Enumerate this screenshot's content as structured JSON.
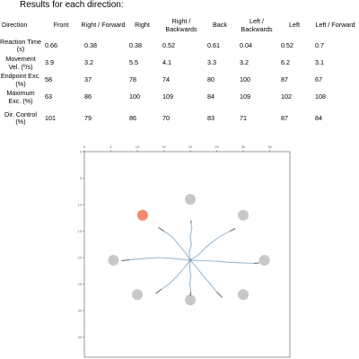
{
  "heading": "Results for each direction:",
  "table": {
    "corner": "Direction",
    "columns": [
      "Front",
      "Right / Forward",
      "Right",
      "Right / Backwards",
      "Back",
      "Left / Backwards",
      "Left",
      "Left / Forward"
    ],
    "rows": [
      {
        "label": "Reaction Time (s)",
        "values": [
          "0.66",
          "0.38",
          "0.38",
          "0.52",
          "0.61",
          "0.04",
          "0.52",
          "0.7"
        ]
      },
      {
        "label": "Movement Vel. (º/s)",
        "values": [
          "3.9",
          "3.2",
          "5.5",
          "4.1",
          "3.3",
          "3.2",
          "6.2",
          "3.1"
        ]
      },
      {
        "label": "Endpoint Exc. (%)",
        "values": [
          "58",
          "37",
          "78",
          "74",
          "80",
          "100",
          "87",
          "67"
        ]
      },
      {
        "label": "Maximum Exc. (%)",
        "values": [
          "63",
          "86",
          "100",
          "109",
          "84",
          "109",
          "102",
          "108"
        ]
      },
      {
        "label": "Dir. Control (%)",
        "values": [
          "101",
          "79",
          "86",
          "70",
          "83",
          "71",
          "87",
          "84"
        ]
      }
    ]
  },
  "plot": {
    "x_ticks": [
      "0",
      "5",
      "10",
      "15",
      "20",
      "25",
      "30",
      "35"
    ],
    "y_ticks": [
      "0",
      "5",
      "10",
      "15",
      "20",
      "25",
      "30",
      "35"
    ],
    "center": [
      20,
      20.5
    ],
    "targets": [
      {
        "x": 20,
        "y": 9
      },
      {
        "x": 30,
        "y": 12
      },
      {
        "x": 34,
        "y": 20.5
      },
      {
        "x": 30,
        "y": 27
      },
      {
        "x": 20,
        "y": 28
      },
      {
        "x": 10,
        "y": 27
      },
      {
        "x": 5.5,
        "y": 20.5
      },
      {
        "x": 11,
        "y": 12
      }
    ],
    "highlight_target": {
      "x": 11,
      "y": 12
    },
    "paths": [
      [
        [
          20,
          20.5
        ],
        [
          19.8,
          19
        ],
        [
          20.2,
          17.5
        ],
        [
          20,
          16
        ],
        [
          20.3,
          14.5
        ],
        [
          20.1,
          13.5
        ],
        [
          20.2,
          13
        ]
      ],
      [
        [
          20,
          20.5
        ],
        [
          21.5,
          19.5
        ],
        [
          23,
          18
        ],
        [
          24.5,
          16.8
        ],
        [
          26,
          15.8
        ],
        [
          27.5,
          15
        ],
        [
          28.5,
          14.5
        ]
      ],
      [
        [
          20,
          20.5
        ],
        [
          22.5,
          20.6
        ],
        [
          25,
          20.7
        ],
        [
          27.5,
          20.9
        ],
        [
          30,
          21
        ],
        [
          32,
          21.1
        ],
        [
          33,
          21
        ]
      ],
      [
        [
          20,
          20.5
        ],
        [
          21.3,
          22
        ],
        [
          22.5,
          23.5
        ],
        [
          23.8,
          25
        ],
        [
          25,
          26.5
        ],
        [
          26,
          27.5
        ]
      ],
      [
        [
          20,
          20.5
        ],
        [
          19.9,
          22
        ],
        [
          20.1,
          23.5
        ],
        [
          19.9,
          25
        ],
        [
          20.1,
          26.5
        ],
        [
          20,
          27.3
        ]
      ],
      [
        [
          20,
          20.5
        ],
        [
          18.8,
          22
        ],
        [
          17.5,
          23.5
        ],
        [
          16,
          25
        ],
        [
          14.5,
          26
        ],
        [
          13.5,
          26.8
        ]
      ],
      [
        [
          20,
          20.5
        ],
        [
          17,
          20.2
        ],
        [
          14,
          20
        ],
        [
          11,
          20.2
        ],
        [
          8.5,
          20.4
        ],
        [
          7,
          20.6
        ]
      ],
      [
        [
          20,
          20.5
        ],
        [
          19,
          19
        ],
        [
          17.8,
          17.5
        ],
        [
          16.5,
          16
        ],
        [
          15,
          15
        ],
        [
          14,
          14.3
        ]
      ]
    ],
    "colors": {
      "path": "#9cb9d1",
      "path_end": "#777777",
      "target": "#c8c8c8",
      "highlight": "#f4896b",
      "axis": "#555555"
    }
  }
}
